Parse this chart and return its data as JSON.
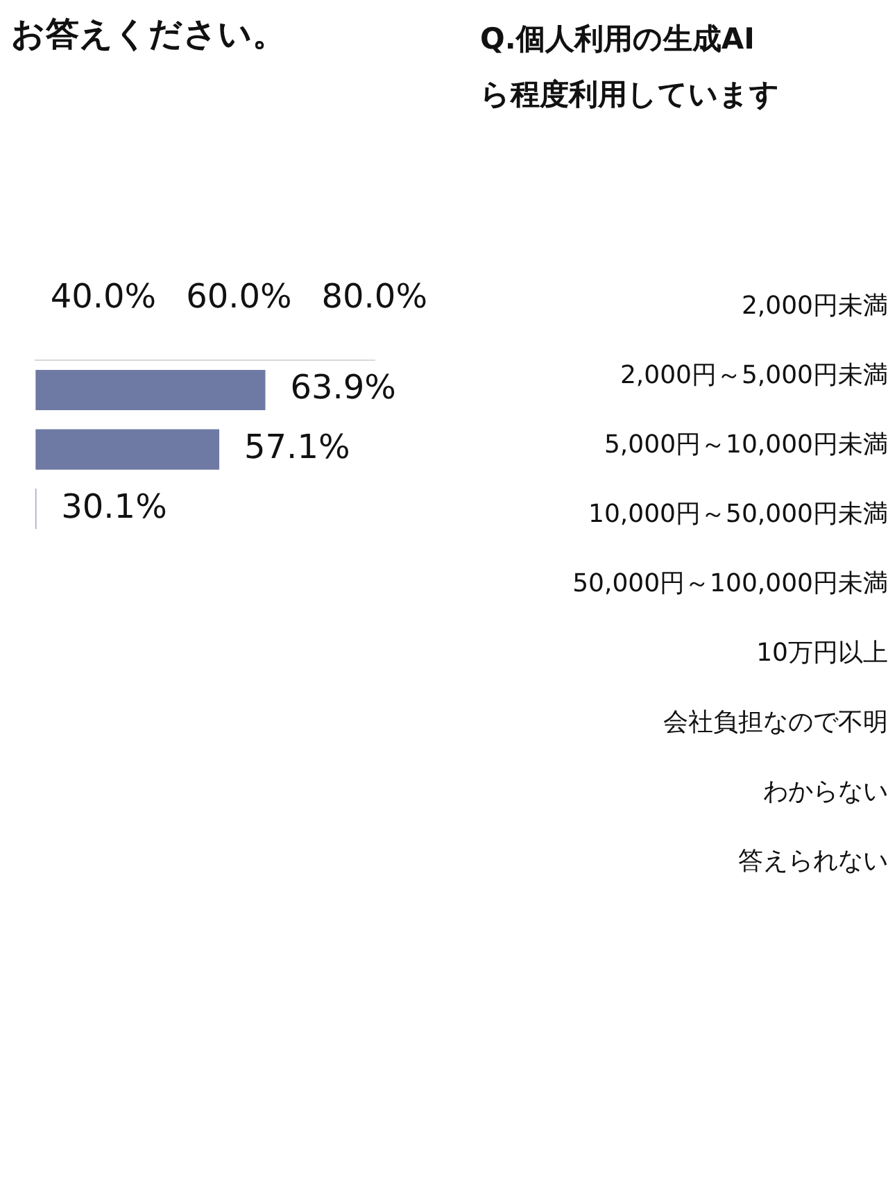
{
  "chart_data": [
    {
      "type": "bar",
      "orientation": "horizontal",
      "title": "お答えください。",
      "categories": [
        null,
        null,
        null
      ],
      "values": [
        63.9,
        57.1,
        30.1
      ],
      "color": "#6e7aa3",
      "value_labels": [
        "63.9%",
        "57.1%",
        "30.1%"
      ],
      "xlim": [
        30,
        80
      ],
      "xticks": [
        {
          "value": 40,
          "label": "40.0%"
        },
        {
          "value": 60,
          "label": "60.0%"
        },
        {
          "value": 80,
          "label": "80.0%"
        }
      ],
      "grid": false
    },
    {
      "type": "other",
      "title": "Q.個人利用の生成AI\nら程度利用しています",
      "categories": [
        "2,000円未満",
        "2,000円～5,000円未満",
        "5,000円～10,000円未満",
        "10,000円～50,000円未満",
        "50,000円～100,000円未満",
        "10万円以上",
        "会社負担なので不明",
        "わからない",
        "答えられない"
      ]
    }
  ]
}
